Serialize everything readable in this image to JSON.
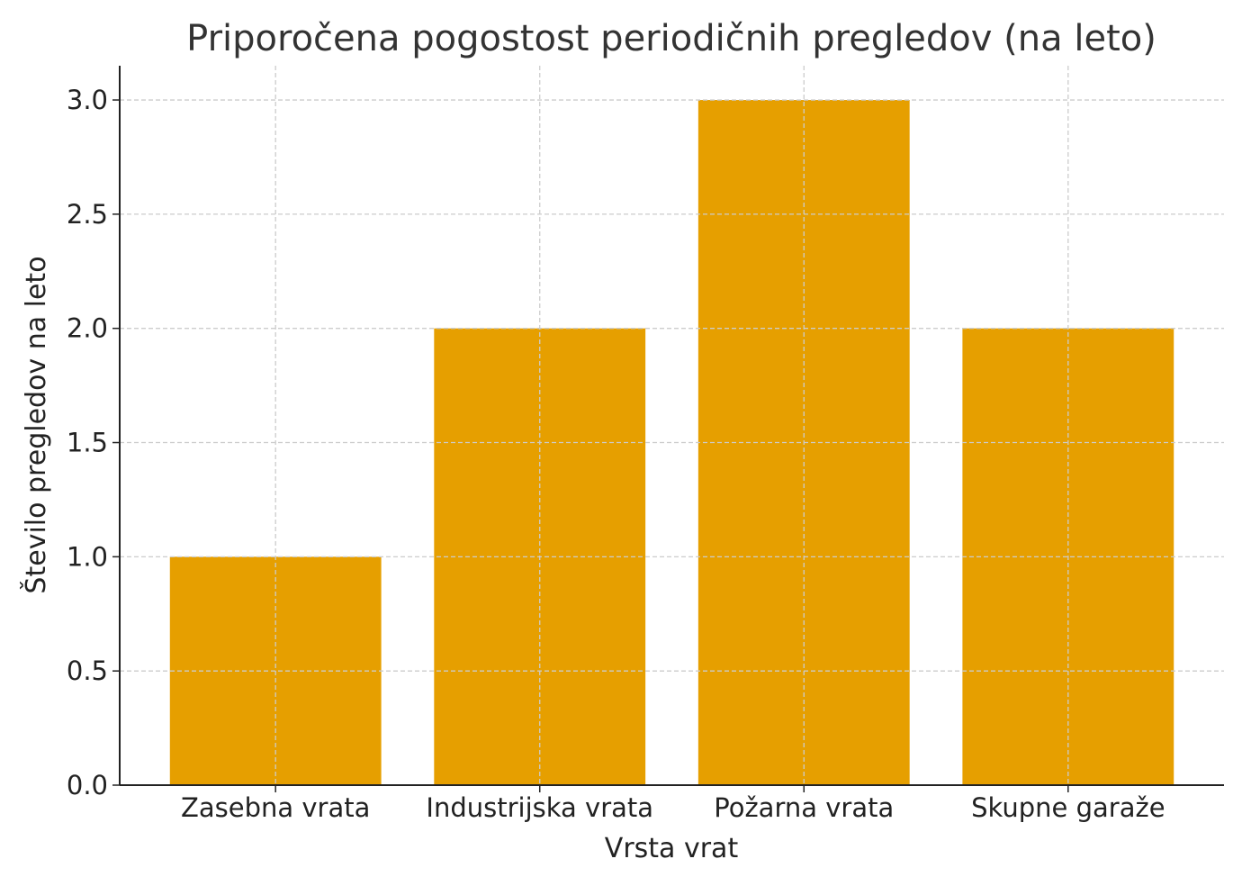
{
  "chart_data": {
    "type": "bar",
    "title": "Priporočena pogostost periodičnih pregledov (na leto)",
    "xlabel": "Vrsta vrat",
    "ylabel": "Število pregledov na leto",
    "categories": [
      "Zasebna vrata",
      "Industrijska vrata",
      "Požarna vrata",
      "Skupne garaže"
    ],
    "values": [
      1,
      2,
      3,
      2
    ],
    "ylim": [
      0,
      3.15
    ],
    "yticks": [
      "0.0",
      "0.5",
      "1.0",
      "1.5",
      "2.0",
      "2.5",
      "3.0"
    ],
    "grid": true,
    "bar_color": "#E69F00"
  }
}
